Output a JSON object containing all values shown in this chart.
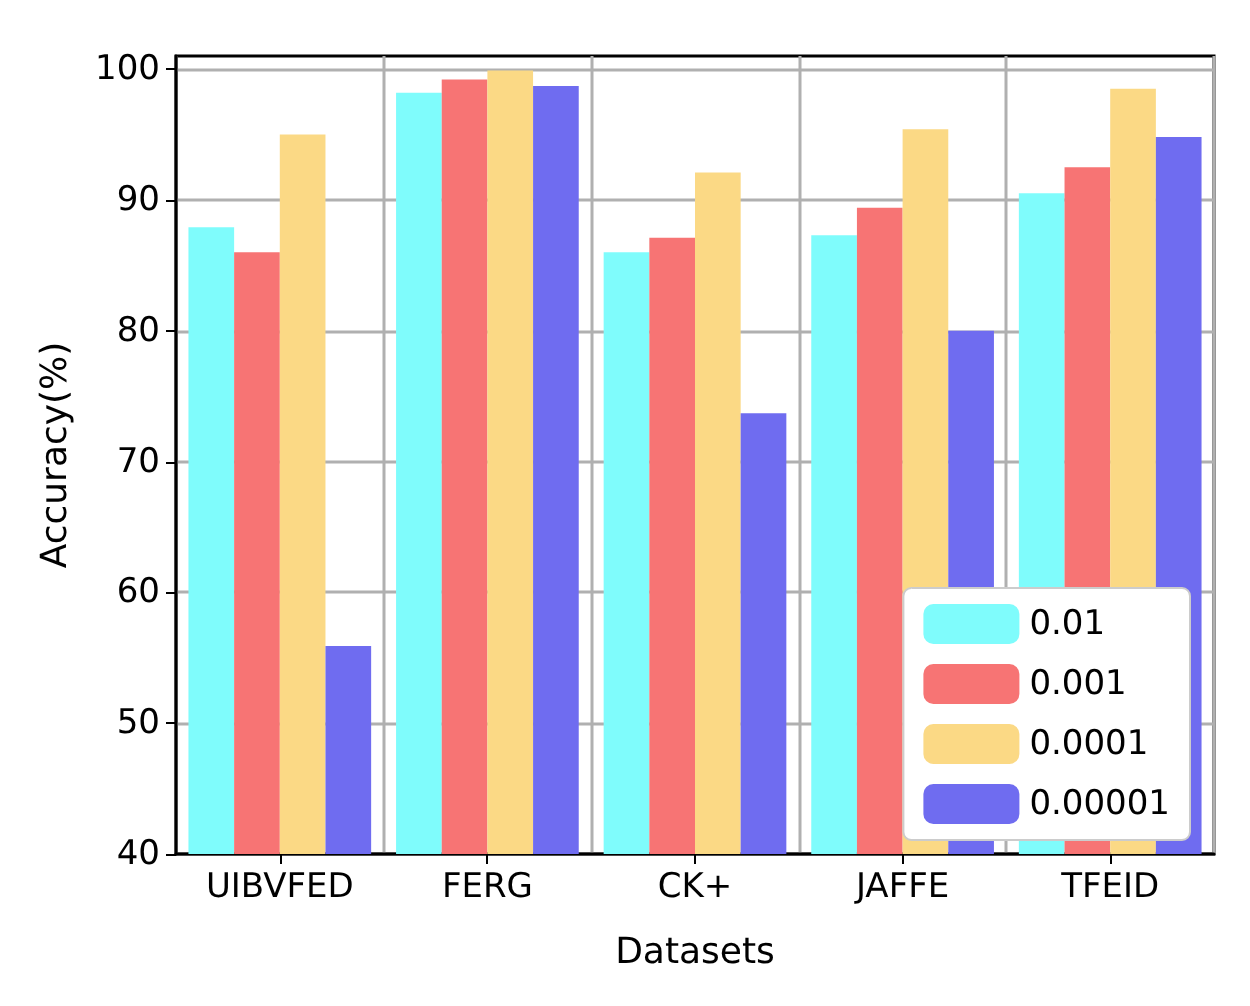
{
  "chart_data": {
    "type": "bar",
    "xlabel": "Datasets",
    "ylabel": "Accuracy(%)",
    "categories": [
      "UIBVFED",
      "FERG",
      "CK+",
      "JAFFE",
      "TFEID"
    ],
    "series": [
      {
        "name": "0.01",
        "color": "#7ffcfc",
        "values": [
          87.9,
          98.2,
          86.0,
          87.3,
          90.5
        ]
      },
      {
        "name": "0.001",
        "color": "#f77474",
        "values": [
          86.0,
          99.2,
          87.1,
          89.4,
          92.5
        ]
      },
      {
        "name": "0.0001",
        "color": "#fbd985",
        "values": [
          95.0,
          99.9,
          92.1,
          95.4,
          98.5
        ]
      },
      {
        "name": "0.00001",
        "color": "#6f6cf0",
        "values": [
          55.9,
          98.7,
          73.7,
          80.0,
          94.8
        ]
      }
    ],
    "ylim": [
      40,
      101
    ],
    "yticks": [
      40,
      50,
      60,
      70,
      80,
      90,
      100
    ],
    "grid": true,
    "legend": "bottom right"
  }
}
